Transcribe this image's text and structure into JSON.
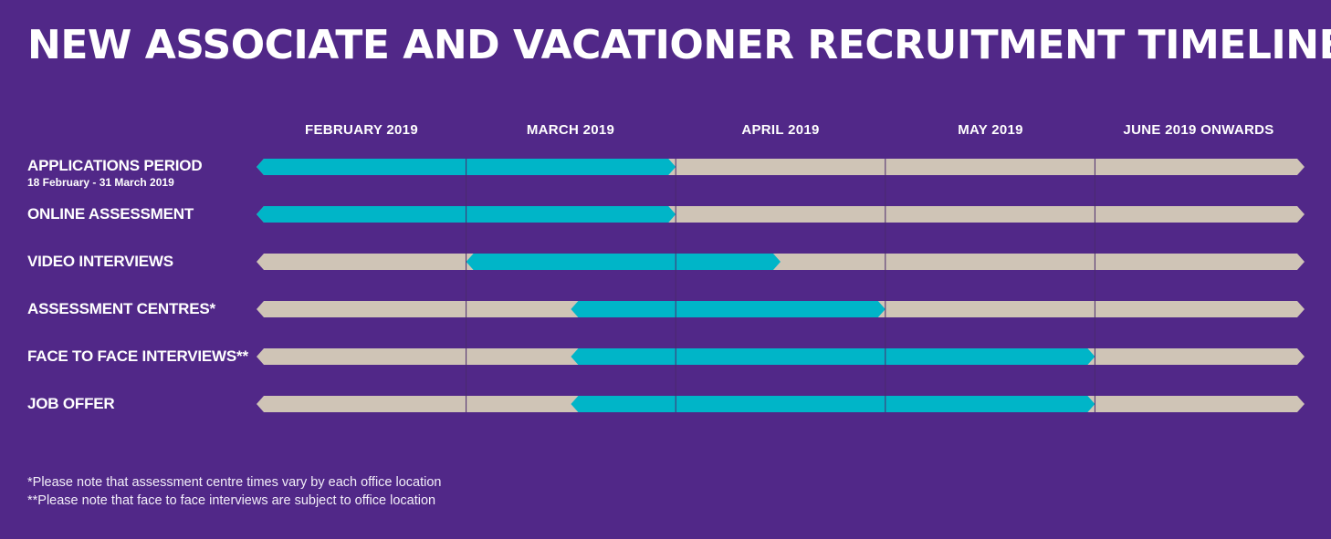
{
  "title": "NEW ASSOCIATE AND VACATIONER RECRUITMENT TIMELINE",
  "colors": {
    "background": "#512888",
    "track": "#cfc4b6",
    "bar": "#00b5c8",
    "divider": "#4a2a6e"
  },
  "chart_data": {
    "type": "bar",
    "orientation": "horizontal",
    "title": "NEW ASSOCIATE AND VACATIONER RECRUITMENT TIMELINE",
    "x_unit": "months (0 = start of February 2019)",
    "xlim": [
      0,
      5
    ],
    "months": [
      "FEBRUARY 2019",
      "MARCH 2019",
      "APRIL 2019",
      "MAY 2019",
      "JUNE 2019 ONWARDS"
    ],
    "grid": true,
    "rows": [
      {
        "label": "APPLICATIONS PERIOD",
        "sublabel": "18 February - 31 March 2019",
        "start": 0,
        "end": 2
      },
      {
        "label": "ONLINE ASSESSMENT",
        "start": 0,
        "end": 2
      },
      {
        "label": "VIDEO INTERVIEWS",
        "start": 1,
        "end": 2.5
      },
      {
        "label": "ASSESSMENT CENTRES*",
        "start": 1.5,
        "end": 3
      },
      {
        "label": "FACE TO FACE INTERVIEWS**",
        "start": 1.5,
        "end": 4
      },
      {
        "label": "JOB OFFER",
        "start": 1.5,
        "end": 4
      }
    ]
  },
  "notes": [
    "*Please note that assessment centre times vary by each office location",
    "**Please note that face to face interviews are subject to office location"
  ]
}
